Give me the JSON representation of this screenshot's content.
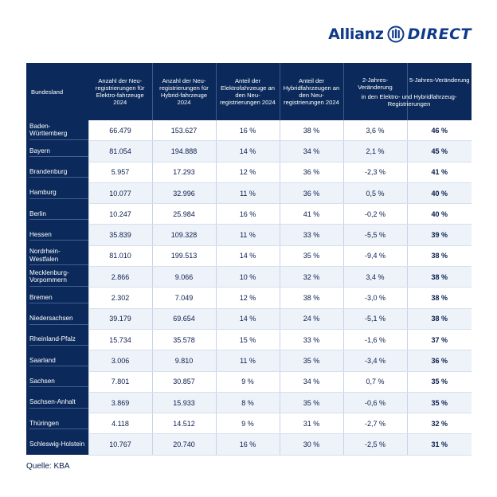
{
  "logo": {
    "brand": "Allianz",
    "product": "DIRECT"
  },
  "table": {
    "headers": [
      "Bundesland",
      "Anzahl der Neu-registrierungen für Elektro-fahrzeuge 2024",
      "Anzahl der Neu-registrierungen für Hybrid-fahrzeuge 2024",
      "Anteil der Elektrofahrzeuge an den Neu-registrierungen 2024",
      "Anteil der Hybridfahrzeugen an den Neu-registrierungen 2024",
      "2-Jahres-Veränderung",
      "5-Jahres-Veränderung"
    ],
    "subheader": "in den Elektro- und Hybridfahrzeug-Registrierungen",
    "rows": [
      [
        "Baden-Württemberg",
        "66.479",
        "153.627",
        "16 %",
        "38 %",
        "3,6 %",
        "46 %"
      ],
      [
        "Bayern",
        "81.054",
        "194.888",
        "14 %",
        "34 %",
        "2,1 %",
        "45 %"
      ],
      [
        "Brandenburg",
        "5.957",
        "17.293",
        "12 %",
        "36 %",
        "-2,3 %",
        "41 %"
      ],
      [
        "Hamburg",
        "10.077",
        "32.996",
        "11 %",
        "36 %",
        "0,5 %",
        "40 %"
      ],
      [
        "Berlin",
        "10.247",
        "25.984",
        "16 %",
        "41 %",
        "-0,2 %",
        "40 %"
      ],
      [
        "Hessen",
        "35.839",
        "109.328",
        "11 %",
        "33 %",
        "-5,5 %",
        "39 %"
      ],
      [
        "Nordrhein-Westfalen",
        "81.010",
        "199.513",
        "14 %",
        "35 %",
        "-9,4 %",
        "38 %"
      ],
      [
        "Mecklenburg-Vorpommern",
        "2.866",
        "9.066",
        "10 %",
        "32 %",
        "3,4 %",
        "38 %"
      ],
      [
        "Bremen",
        "2.302",
        "7.049",
        "12 %",
        "38 %",
        "-3,0 %",
        "38 %"
      ],
      [
        "Niedersachsen",
        "39.179",
        "69.654",
        "14 %",
        "24 %",
        "-5,1 %",
        "38 %"
      ],
      [
        "Rheinland-Pfalz",
        "15.734",
        "35.578",
        "15 %",
        "33 %",
        "-1,6 %",
        "37 %"
      ],
      [
        "Saarland",
        "3.006",
        "9.810",
        "11 %",
        "35 %",
        "-3,4 %",
        "36 %"
      ],
      [
        "Sachsen",
        "7.801",
        "30.857",
        "9 %",
        "34 %",
        "0,7 %",
        "35 %"
      ],
      [
        "Sachsen-Anhalt",
        "3.869",
        "15.933",
        "8 %",
        "35 %",
        "-0,6 %",
        "35 %"
      ],
      [
        "Thüringen",
        "4.118",
        "14.512",
        "9 %",
        "31 %",
        "-2,7 %",
        "32 %"
      ],
      [
        "Schleswig-Holstein",
        "10.767",
        "20.740",
        "16 %",
        "30 %",
        "-2,5 %",
        "31 %"
      ]
    ]
  },
  "source": "Quelle: KBA",
  "colors": {
    "header_bg": "#0b2a5b",
    "stripe": "#eef3fa",
    "text": "#0a1e4d",
    "logo": "#0f3a8a"
  }
}
